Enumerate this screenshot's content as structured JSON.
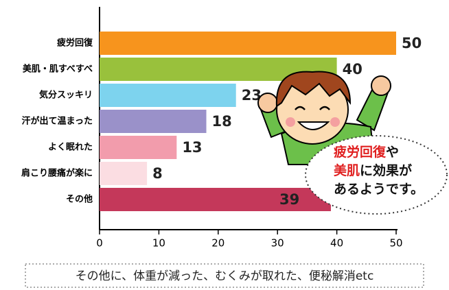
{
  "chart_data": {
    "type": "bar",
    "categories": [
      "疲労回復",
      "美肌・肌すべすべ",
      "気分スッキリ",
      "汗が出て温まった",
      "よく眠れた",
      "肩こり腰痛が楽に",
      "その他"
    ],
    "values": [
      50,
      40,
      23,
      18,
      13,
      8,
      39
    ],
    "colors": [
      "#f7941d",
      "#99c13c",
      "#7dd3ee",
      "#9a91c9",
      "#f29cac",
      "#fbdde2",
      "#c4385a"
    ],
    "xlim": [
      0,
      50
    ],
    "xticks": [
      0,
      10,
      20,
      30,
      40,
      50
    ],
    "annotation": [
      [
        "疲労回復",
        "や"
      ],
      [
        "美肌",
        "に効果が"
      ],
      [
        "あるようです。"
      ]
    ],
    "note": "その他に、体重が減った、むくみが取れた、便秘解消etc"
  }
}
